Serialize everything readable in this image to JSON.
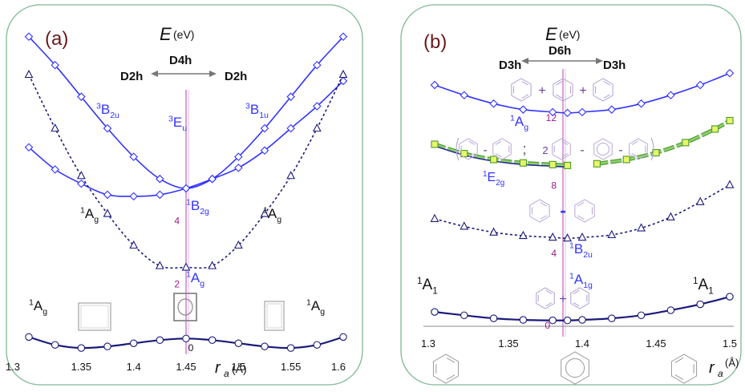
{
  "chart_data": [
    {
      "panel_label": "(a)",
      "type": "line",
      "title": "E (eV)",
      "title_main": "E",
      "title_unit": "(eV)",
      "xlabel": "r_a (Å)",
      "xlabel_main": "r",
      "xlabel_sub": "a",
      "xlabel_unit": "(Å)",
      "xlim": [
        1.3,
        1.6
      ],
      "ylim": [
        -0.3,
        10.2
      ],
      "x_ticks": [
        "1.3",
        "1.35",
        "1.4",
        "1.45",
        "1.5",
        "1.55",
        "1.6"
      ],
      "y_ticks": [
        {
          "value": 0,
          "label": "0"
        },
        {
          "value": 2,
          "label": "2"
        },
        {
          "value": 4,
          "label": "4"
        }
      ],
      "symmetry": {
        "left": "D2h",
        "center": "D4h",
        "right": "D2h"
      },
      "series": [
        {
          "state": "3B2u",
          "style": "solid",
          "color": "#3333ff",
          "marker": "diamond",
          "x": [
            1.3,
            1.325,
            1.35,
            1.375,
            1.4,
            1.425,
            1.45,
            1.475,
            1.5,
            1.525,
            1.55,
            1.575,
            1.6
          ],
          "y": [
            9.8,
            8.9,
            7.9,
            6.9,
            6.0,
            5.3,
            5.0,
            5.3,
            6.0,
            6.9,
            7.9,
            8.9,
            9.8
          ]
        },
        {
          "state": "3B1u",
          "style": "solid",
          "color": "#3333ff",
          "marker": "diamond",
          "x": [
            1.3,
            1.325,
            1.35,
            1.375,
            1.4,
            1.425,
            1.45,
            1.475,
            1.5,
            1.525,
            1.55,
            1.575,
            1.6
          ],
          "y": [
            6.3,
            5.6,
            5.15,
            4.8,
            4.75,
            4.8,
            5.0,
            5.3,
            5.65,
            6.2,
            6.9,
            7.6,
            8.4
          ]
        },
        {
          "state": "1Ag",
          "style": "dotted",
          "color": "#1a1a7a",
          "marker": "triangle",
          "x": [
            1.3,
            1.325,
            1.35,
            1.375,
            1.4,
            1.425,
            1.45,
            1.475,
            1.5,
            1.525,
            1.55,
            1.575,
            1.6
          ],
          "y": [
            8.6,
            6.9,
            5.4,
            4.2,
            3.2,
            2.55,
            2.5,
            2.55,
            3.2,
            4.2,
            5.4,
            6.9,
            8.6
          ]
        },
        {
          "state": "1Ag (ground)",
          "style": "solid",
          "color": "#1a1a7a",
          "marker": "circle",
          "x": [
            1.3,
            1.325,
            1.35,
            1.375,
            1.4,
            1.425,
            1.45,
            1.475,
            1.5,
            1.525,
            1.55,
            1.575,
            1.6
          ],
          "y": [
            0.3,
            0.05,
            -0.05,
            0.0,
            0.1,
            0.2,
            0.25,
            0.2,
            0.1,
            0.0,
            -0.05,
            0.05,
            0.3
          ]
        }
      ],
      "annotations": [
        {
          "text": "3B2u",
          "base": "B",
          "sup": "3",
          "sub": "2u"
        },
        {
          "text": "3Eu",
          "base": "E",
          "sup": "3",
          "sub": "u"
        },
        {
          "text": "3B1u",
          "base": "B",
          "sup": "3",
          "sub": "1u"
        },
        {
          "text": "1B2g",
          "base": "B",
          "sup": "1",
          "sub": "2g"
        },
        {
          "text": "1Ag",
          "base": "A",
          "sup": "1",
          "sub": "g"
        },
        {
          "text": "1Ag",
          "base": "A",
          "sup": "1",
          "sub": "g"
        },
        {
          "text": "1Ag",
          "base": "A",
          "sup": "1",
          "sub": "g"
        },
        {
          "text": "1Ag",
          "base": "A",
          "sup": "1",
          "sub": "g"
        },
        {
          "text": "1Ag",
          "base": "A",
          "sup": "1",
          "sub": "g"
        }
      ]
    },
    {
      "panel_label": "(b)",
      "type": "line",
      "title": "E (eV)",
      "title_main": "E",
      "title_unit": "(eV)",
      "xlabel": "r_a (Å)",
      "xlabel_main": "r",
      "xlabel_sub": "a",
      "xlabel_unit": "(Å)",
      "xlim": [
        1.3,
        1.5
      ],
      "ylim": [
        -0.3,
        17.5
      ],
      "x_ticks": [
        "1.3",
        "1.35",
        "1.4",
        "1.45",
        "1.5"
      ],
      "y_ticks": [
        {
          "value": 0,
          "label": "0"
        },
        {
          "value": 4,
          "label": "4"
        },
        {
          "value": 8,
          "label": "8"
        },
        {
          "value": 12,
          "label": "12"
        }
      ],
      "symmetry": {
        "left": "D3h",
        "center": "D6h",
        "right": "D3h"
      },
      "series": [
        {
          "state": "1Ag",
          "style": "solid",
          "color": "#3333ff",
          "marker": "diamond",
          "x": [
            1.3,
            1.32,
            1.34,
            1.36,
            1.38,
            1.39,
            1.4,
            1.42,
            1.44,
            1.46,
            1.48,
            1.5
          ],
          "y": [
            13.9,
            13.3,
            12.8,
            12.45,
            12.3,
            12.25,
            12.3,
            12.45,
            12.8,
            13.3,
            13.9,
            14.6
          ]
        },
        {
          "state": "1E2g",
          "style": "solid",
          "color": "#66cc33",
          "marker": "square",
          "x": [
            1.3,
            1.32,
            1.34,
            1.36,
            1.38,
            1.39,
            1.41,
            1.43,
            1.45,
            1.47,
            1.49,
            1.5
          ],
          "y": [
            10.4,
            9.85,
            9.5,
            9.3,
            9.2,
            9.15,
            9.25,
            9.5,
            9.9,
            10.5,
            11.3,
            11.8
          ]
        },
        {
          "state": "1B2u",
          "style": "dotted",
          "color": "#1a1a7a",
          "marker": "triangle",
          "x": [
            1.3,
            1.32,
            1.34,
            1.36,
            1.38,
            1.39,
            1.4,
            1.42,
            1.44,
            1.46,
            1.48,
            1.5
          ],
          "y": [
            6.0,
            5.55,
            5.2,
            5.0,
            4.9,
            4.85,
            4.9,
            5.05,
            5.45,
            6.1,
            7.0,
            8.0
          ]
        },
        {
          "state": "1A1g",
          "style": "solid",
          "color": "#1a1a7a",
          "marker": "circle",
          "x": [
            1.3,
            1.32,
            1.34,
            1.36,
            1.38,
            1.39,
            1.4,
            1.42,
            1.44,
            1.46,
            1.48,
            1.5
          ],
          "y": [
            0.5,
            0.3,
            0.12,
            0.03,
            0.0,
            0.0,
            0.03,
            0.12,
            0.3,
            0.6,
            0.95,
            1.4
          ]
        }
      ],
      "annotations": [
        {
          "text": "1Ag",
          "base": "A",
          "sup": "1",
          "sub": "g"
        },
        {
          "text": "1E2g",
          "base": "E",
          "sup": "1",
          "sub": "2g"
        },
        {
          "text": "1B2u",
          "base": "B",
          "sup": "1",
          "sub": "2u"
        },
        {
          "text": "1A1g",
          "base": "A",
          "sup": "1",
          "sub": "1g"
        },
        {
          "text": "1A1",
          "base": "A",
          "sup": "1",
          "sub": "1"
        },
        {
          "text": "1A1",
          "base": "A",
          "sup": "1",
          "sub": "1"
        }
      ],
      "resonance_labels": {
        "plus": "+",
        "minus": "-",
        "semicolon": ";",
        "coefficient": "2"
      }
    }
  ]
}
